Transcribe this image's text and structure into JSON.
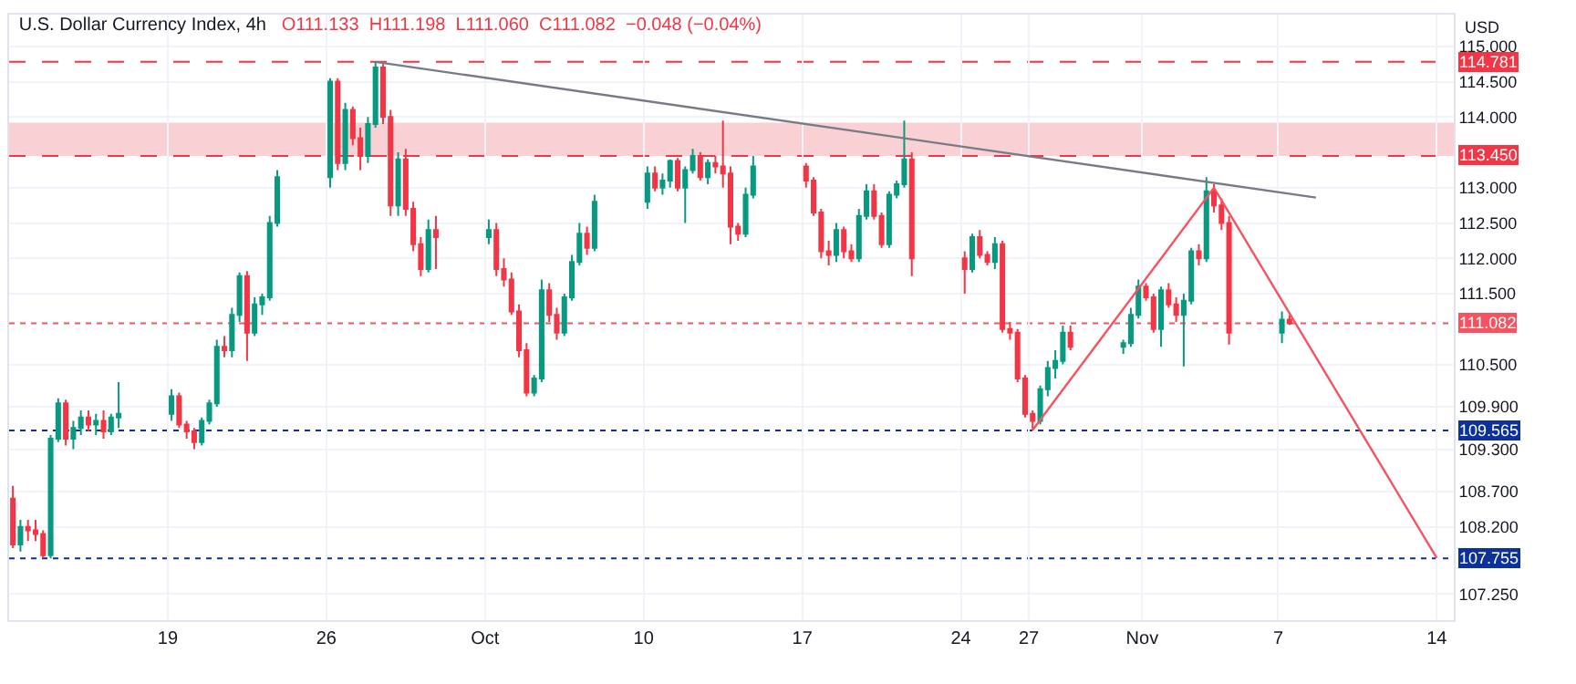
{
  "chart_data": {
    "type": "candlestick",
    "title": "U.S. Dollar Currency Index, 4h",
    "subtitle": "O111.133  H111.198  L111.060  C111.082  −0.048 (−0.04%)",
    "annotations": [
      "USD"
    ],
    "colors": [
      "#f23645",
      "#089981",
      "#f23645",
      "#f23645",
      "#f23645",
      "#089981",
      "#089981",
      "#f23645",
      "#089981",
      "#089981",
      "#f23645",
      "#089981",
      "#f23645",
      "#089981",
      "#089981",
      "#089981",
      "#f23645",
      "#f23645",
      "#f23645",
      "#089981",
      "#089981",
      "#089981",
      "#f23645",
      "#089981",
      "#089981",
      "#f23645",
      "#089981",
      "#089981",
      "#089981",
      "#089981",
      "#089981",
      "#f23645",
      "#089981",
      "#f23645",
      "#f23645",
      "#089981",
      "#089981",
      "#f23645",
      "#f23645",
      "#089981",
      "#f23645",
      "#f23645",
      "#f23645",
      "#089981",
      "#f23645",
      "#089981",
      "#f23645",
      "#f23645",
      "#f23645",
      "#f23645",
      "#f23645",
      "#089981",
      "#089981",
      "#f23645",
      "#f23645",
      "#089981",
      "#089981",
      "#089981",
      "#f23645",
      "#089981",
      "#089981",
      "#f23645",
      "#089981",
      "#089981",
      "#f23645",
      "#089981",
      "#089981",
      "#f23645",
      "#089981",
      "#f23645",
      "#f23645",
      "#f23645",
      "#f23645",
      "#089981",
      "#089981",
      "#f23645",
      "#f23645",
      "#f23645",
      "#f23645",
      "#089981",
      "#f23645",
      "#f23645",
      "#089981",
      "#089981",
      "#f23645",
      "#f23645",
      "#089981",
      "#089981",
      "#089981",
      "#f23645",
      "#f23645",
      "#089981",
      "#f23645",
      "#f23645",
      "#089981",
      "#f23645",
      "#f23645",
      "#f23645",
      "#f23645",
      "#f23645",
      "#089981",
      "#089981",
      "#089981",
      "#089981",
      "#f23645",
      "#089981",
      "#089981",
      "#089981",
      "#f23645",
      "#f23645",
      "#089981",
      "#f23645",
      "#f23645",
      "#089981",
      "#089981",
      "#f23645",
      "#089981",
      "#f23645",
      "#f23645",
      "#f23645",
      "#089981",
      "#f23645"
    ],
    "x": [
      "--09-12T04:00",
      "--09-12T12:00",
      "--09-12T20:00",
      "--09-13T04:00",
      "--09-13T12:00",
      "--09-13T20:00",
      "--09-14T04:00",
      "--09-14T12:00",
      "--09-14T20:00",
      "--09-15T04:00",
      "--09-15T12:00",
      "--09-15T20:00",
      "--09-16T04:00",
      "--09-16T12:00",
      "--09-16T20:00",
      "--09-19T04:00",
      "--09-19T12:00",
      "--09-19T20:00",
      "--09-20T04:00",
      "--09-20T12:00",
      "--09-20T20:00",
      "--09-21T04:00",
      "--09-21T12:00",
      "--09-21T20:00",
      "--09-22T04:00",
      "--09-22T12:00",
      "--09-22T20:00",
      "--09-23T04:00",
      "--09-23T12:00",
      "--09-23T20:00",
      "--09-26T04:00",
      "--09-26T12:00",
      "--09-26T20:00",
      "--09-27T04:00",
      "--09-27T12:00",
      "--09-27T20:00",
      "--09-28T04:00",
      "--09-28T12:00",
      "--09-28T20:00",
      "--09-29T04:00",
      "--09-29T12:00",
      "--09-29T20:00",
      "--09-30T04:00",
      "--09-30T12:00",
      "--09-30T20:00",
      "--10-03T04:00",
      "--10-03T12:00",
      "--10-03T20:00",
      "--10-04T04:00",
      "--10-04T12:00",
      "--10-04T20:00",
      "--10-05T04:00",
      "--10-05T12:00",
      "--10-05T20:00",
      "--10-06T04:00",
      "--10-06T12:00",
      "--10-06T20:00",
      "--10-07T04:00",
      "--10-07T12:00",
      "--10-07T20:00",
      "--10-10T04:00",
      "--10-10T12:00",
      "--10-10T20:00",
      "--10-11T04:00",
      "--10-11T12:00",
      "--10-11T20:00",
      "--10-12T04:00",
      "--10-12T12:00",
      "--10-12T20:00",
      "--10-13T04:00",
      "--10-13T12:00",
      "--10-13T20:00",
      "--10-14T04:00",
      "--10-14T12:00",
      "--10-14T20:00",
      "--10-17T04:00",
      "--10-17T12:00",
      "--10-17T20:00",
      "--10-18T04:00",
      "--10-18T12:00",
      "--10-18T20:00",
      "--10-19T04:00",
      "--10-19T12:00",
      "--10-19T20:00",
      "--10-20T04:00",
      "--10-20T12:00",
      "--10-20T20:00",
      "--10-21T04:00",
      "--10-21T12:00",
      "--10-21T20:00",
      "--10-24T04:00",
      "--10-24T12:00",
      "--10-24T20:00",
      "--10-25T04:00",
      "--10-25T12:00",
      "--10-25T20:00",
      "--10-26T04:00",
      "--10-26T12:00",
      "--10-26T20:00",
      "--10-27T04:00",
      "--10-27T12:00",
      "--10-27T20:00",
      "--10-28T04:00",
      "--10-28T12:00",
      "--10-28T20:00",
      "--10-31T04:00",
      "--10-31T12:00",
      "--10-31T20:00",
      "--11-01T04:00",
      "--11-01T12:00",
      "--11-01T20:00",
      "--11-02T04:00",
      "--11-02T12:00",
      "--11-02T20:00",
      "--11-03T04:00",
      "--11-03T12:00",
      "--11-03T20:00",
      "--11-04T04:00",
      "--11-04T12:00",
      "--11-04T20:00",
      "--11-07T04:00",
      "--11-07T12:00"
    ],
    "ohlc": [
      [
        108.6,
        108.78,
        107.9,
        107.95
      ],
      [
        107.95,
        108.3,
        107.85,
        108.2
      ],
      [
        108.2,
        108.3,
        108.0,
        108.15
      ],
      [
        108.15,
        108.3,
        108.0,
        108.1
      ],
      [
        108.1,
        108.15,
        107.76,
        107.8
      ],
      [
        107.8,
        109.5,
        107.755,
        109.45
      ],
      [
        109.45,
        110.02,
        109.4,
        109.95
      ],
      [
        109.95,
        110.0,
        109.35,
        109.45
      ],
      [
        109.45,
        109.7,
        109.3,
        109.6
      ],
      [
        109.6,
        109.85,
        109.5,
        109.75
      ],
      [
        109.75,
        109.85,
        109.55,
        109.65
      ],
      [
        109.65,
        109.8,
        109.5,
        109.7
      ],
      [
        109.7,
        109.85,
        109.45,
        109.55
      ],
      [
        109.55,
        109.8,
        109.5,
        109.75
      ],
      [
        109.75,
        110.25,
        109.6,
        109.8
      ],
      [
        109.8,
        110.15,
        109.7,
        110.05
      ],
      [
        110.05,
        110.1,
        109.6,
        109.65
      ],
      [
        109.65,
        109.7,
        109.45,
        109.55
      ],
      [
        109.55,
        109.6,
        109.3,
        109.4
      ],
      [
        109.4,
        109.75,
        109.35,
        109.7
      ],
      [
        109.7,
        110.0,
        109.65,
        109.95
      ],
      [
        109.95,
        110.85,
        109.9,
        110.75
      ],
      [
        110.75,
        110.9,
        110.6,
        110.7
      ],
      [
        110.7,
        111.3,
        110.6,
        111.2
      ],
      [
        111.2,
        111.8,
        111.1,
        111.75
      ],
      [
        111.75,
        111.82,
        110.55,
        110.95
      ],
      [
        110.95,
        111.45,
        110.9,
        111.35
      ],
      [
        111.35,
        111.5,
        111.2,
        111.45
      ],
      [
        111.45,
        112.6,
        111.4,
        112.5
      ],
      [
        112.5,
        113.25,
        112.45,
        113.15
      ],
      [
        113.15,
        114.55,
        113.0,
        114.5
      ],
      [
        114.5,
        114.55,
        113.25,
        113.35
      ],
      [
        113.35,
        114.2,
        113.25,
        114.1
      ],
      [
        114.1,
        114.15,
        113.6,
        113.7
      ],
      [
        113.7,
        113.85,
        113.25,
        113.45
      ],
      [
        113.45,
        114.0,
        113.35,
        113.9
      ],
      [
        113.9,
        114.781,
        113.85,
        114.7
      ],
      [
        114.7,
        114.75,
        113.9,
        114.0
      ],
      [
        114.0,
        114.1,
        112.6,
        112.75
      ],
      [
        112.75,
        113.5,
        112.6,
        113.4
      ],
      [
        113.4,
        113.55,
        112.6,
        112.7
      ],
      [
        112.7,
        112.8,
        112.1,
        112.2
      ],
      [
        112.2,
        112.3,
        111.75,
        111.85
      ],
      [
        111.85,
        112.55,
        111.8,
        112.4
      ],
      [
        112.4,
        112.6,
        111.85,
        112.3
      ],
      [
        112.3,
        112.55,
        112.2,
        112.4
      ],
      [
        112.4,
        112.5,
        111.75,
        111.85
      ],
      [
        111.85,
        112.0,
        111.6,
        111.7
      ],
      [
        111.7,
        111.8,
        111.2,
        111.25
      ],
      [
        111.25,
        111.35,
        110.6,
        110.7
      ],
      [
        110.7,
        110.8,
        110.05,
        110.1
      ],
      [
        110.1,
        110.35,
        110.05,
        110.3
      ],
      [
        110.3,
        111.7,
        110.25,
        111.55
      ],
      [
        111.55,
        111.65,
        111.1,
        111.2
      ],
      [
        111.2,
        111.3,
        110.85,
        110.95
      ],
      [
        110.95,
        111.5,
        110.9,
        111.45
      ],
      [
        111.45,
        112.05,
        111.4,
        111.95
      ],
      [
        111.95,
        112.5,
        111.9,
        112.35
      ],
      [
        112.35,
        112.45,
        112.05,
        112.15
      ],
      [
        112.15,
        112.9,
        112.1,
        112.8
      ],
      [
        112.8,
        113.3,
        112.7,
        113.2
      ],
      [
        113.2,
        113.3,
        112.95,
        113.0
      ],
      [
        113.0,
        113.2,
        112.9,
        113.1
      ],
      [
        113.1,
        113.4,
        113.0,
        113.38
      ],
      [
        113.38,
        113.42,
        112.95,
        113.0
      ],
      [
        113.0,
        113.3,
        112.5,
        113.25
      ],
      [
        113.25,
        113.55,
        113.2,
        113.45
      ],
      [
        113.45,
        113.5,
        113.1,
        113.15
      ],
      [
        113.15,
        113.4,
        113.05,
        113.35
      ],
      [
        113.35,
        113.45,
        113.2,
        113.3
      ],
      [
        113.3,
        113.95,
        113.0,
        113.2
      ],
      [
        113.2,
        113.3,
        112.2,
        112.45
      ],
      [
        112.45,
        112.5,
        112.25,
        112.35
      ],
      [
        112.35,
        113.0,
        112.3,
        112.9
      ],
      [
        112.9,
        113.45,
        112.85,
        113.3
      ],
      [
        113.3,
        113.35,
        113.0,
        113.1
      ],
      [
        113.1,
        113.15,
        112.6,
        112.65
      ],
      [
        112.65,
        112.7,
        112.0,
        112.1
      ],
      [
        112.1,
        112.25,
        111.9,
        112.05
      ],
      [
        112.05,
        112.5,
        111.95,
        112.4
      ],
      [
        112.4,
        112.45,
        112.0,
        112.1
      ],
      [
        112.1,
        112.2,
        111.95,
        112.0
      ],
      [
        112.0,
        112.7,
        111.95,
        112.6
      ],
      [
        112.6,
        113.05,
        112.55,
        112.95
      ],
      [
        112.95,
        113.05,
        112.55,
        112.6
      ],
      [
        112.6,
        112.65,
        112.15,
        112.2
      ],
      [
        112.2,
        112.95,
        112.15,
        112.9
      ],
      [
        112.9,
        113.1,
        112.85,
        113.05
      ],
      [
        113.05,
        113.95,
        113.0,
        113.4
      ],
      [
        113.4,
        113.5,
        111.75,
        112.0
      ],
      [
        112.0,
        112.1,
        111.5,
        111.85
      ],
      [
        111.85,
        112.35,
        111.8,
        112.3
      ],
      [
        112.3,
        112.4,
        112.0,
        112.05
      ],
      [
        112.05,
        112.1,
        111.9,
        111.95
      ],
      [
        111.95,
        112.3,
        111.85,
        112.2
      ],
      [
        112.2,
        112.25,
        110.95,
        111.0
      ],
      [
        111.0,
        111.1,
        110.85,
        110.95
      ],
      [
        110.95,
        111.0,
        110.25,
        110.3
      ],
      [
        110.3,
        110.35,
        109.75,
        109.8
      ],
      [
        109.8,
        109.85,
        109.565,
        109.7
      ],
      [
        109.7,
        110.2,
        109.65,
        110.15
      ],
      [
        110.15,
        110.55,
        110.05,
        110.45
      ],
      [
        110.45,
        110.7,
        110.3,
        110.55
      ],
      [
        110.55,
        111.05,
        110.5,
        110.95
      ],
      [
        110.95,
        111.05,
        110.7,
        110.75
      ],
      [
        110.75,
        110.85,
        110.65,
        110.8
      ],
      [
        110.8,
        111.3,
        110.75,
        111.2
      ],
      [
        111.2,
        111.7,
        111.15,
        111.6
      ],
      [
        111.6,
        111.65,
        111.4,
        111.45
      ],
      [
        111.45,
        111.5,
        110.95,
        111.0
      ],
      [
        111.0,
        111.6,
        110.75,
        111.55
      ],
      [
        111.55,
        111.65,
        111.3,
        111.35
      ],
      [
        111.35,
        111.45,
        111.1,
        111.2
      ],
      [
        111.2,
        111.5,
        110.47,
        111.4
      ],
      [
        111.4,
        112.15,
        111.35,
        112.1
      ],
      [
        112.1,
        112.2,
        111.9,
        112.0
      ],
      [
        112.0,
        113.15,
        111.95,
        112.95
      ],
      [
        112.95,
        113.05,
        112.65,
        112.75
      ],
      [
        112.75,
        112.85,
        112.4,
        112.5
      ],
      [
        112.5,
        112.6,
        110.78,
        110.95
      ],
      [
        110.95,
        111.25,
        110.8,
        111.133
      ],
      [
        111.133,
        111.198,
        111.06,
        111.082
      ]
    ],
    "series": [
      {
        "type": "line",
        "color": "#787b86",
        "x": [
          "--09-28T04:00",
          "--11-08T16:00"
        ],
        "values": [
          114.78,
          112.86
        ]
      },
      {
        "type": "line",
        "color": "#f7525f",
        "x": [
          "--10-27T04:00",
          "--11-04T04:00",
          "--11-14T00:00"
        ],
        "values": [
          109.57,
          113.0,
          107.76
        ]
      }
    ],
    "ref_lines": [
      {
        "axis": "y",
        "value": 114.781,
        "label": "114.781",
        "color": "#f23645",
        "line_style": "dashed"
      },
      {
        "axis": "y",
        "value": 113.45,
        "label": "113.450",
        "color": "#f23645",
        "line_style": "dashed"
      },
      {
        "axis": "y",
        "value": 111.082,
        "label": "111.082",
        "color": "#f7525f",
        "line_style": "dotted"
      },
      {
        "axis": "y",
        "value": 109.565,
        "label": "109.565",
        "color": "#0c3299",
        "line_style": "dotted"
      },
      {
        "axis": "y",
        "value": 107.755,
        "label": "107.755",
        "color": "#0c3299",
        "line_style": "dotted"
      }
    ],
    "bands": [
      {
        "axis": "y",
        "from": 113.45,
        "to": 113.92,
        "color": "#f7c5cb"
      }
    ],
    "xlim": [
      "--09-12T00:00",
      "--11-14T18:00"
    ],
    "xticks": [
      {
        "value": "--09-19",
        "label": "19"
      },
      {
        "value": "--09-26",
        "label": "26"
      },
      {
        "value": "--10-03",
        "label": "Oct"
      },
      {
        "value": "--10-10",
        "label": "10"
      },
      {
        "value": "--10-17",
        "label": "17"
      },
      {
        "value": "--10-24",
        "label": "24"
      },
      {
        "value": "--10-27",
        "label": "27"
      },
      {
        "value": "--11-01",
        "label": "Nov"
      },
      {
        "value": "--11-07",
        "label": "7"
      },
      {
        "value": "--11-14",
        "label": "14"
      }
    ],
    "ylim": [
      106.88,
      115.45
    ],
    "yticks": [
      {
        "value": 107.25,
        "label": "107.250"
      },
      {
        "value": 108.2,
        "label": "108.200"
      },
      {
        "value": 108.7,
        "label": "108.700"
      },
      {
        "value": 109.3,
        "label": "109.300"
      },
      {
        "value": 109.9,
        "label": "109.900"
      },
      {
        "value": 110.5,
        "label": "110.500"
      },
      {
        "value": 111.5,
        "label": "111.500"
      },
      {
        "value": 112,
        "label": "112.000"
      },
      {
        "value": 112.5,
        "label": "112.500"
      },
      {
        "value": 113,
        "label": "113.000"
      },
      {
        "value": 114,
        "label": "114.000"
      },
      {
        "value": 114.5,
        "label": "114.500"
      },
      {
        "value": 115,
        "label": "115.000"
      }
    ],
    "grid": true
  }
}
